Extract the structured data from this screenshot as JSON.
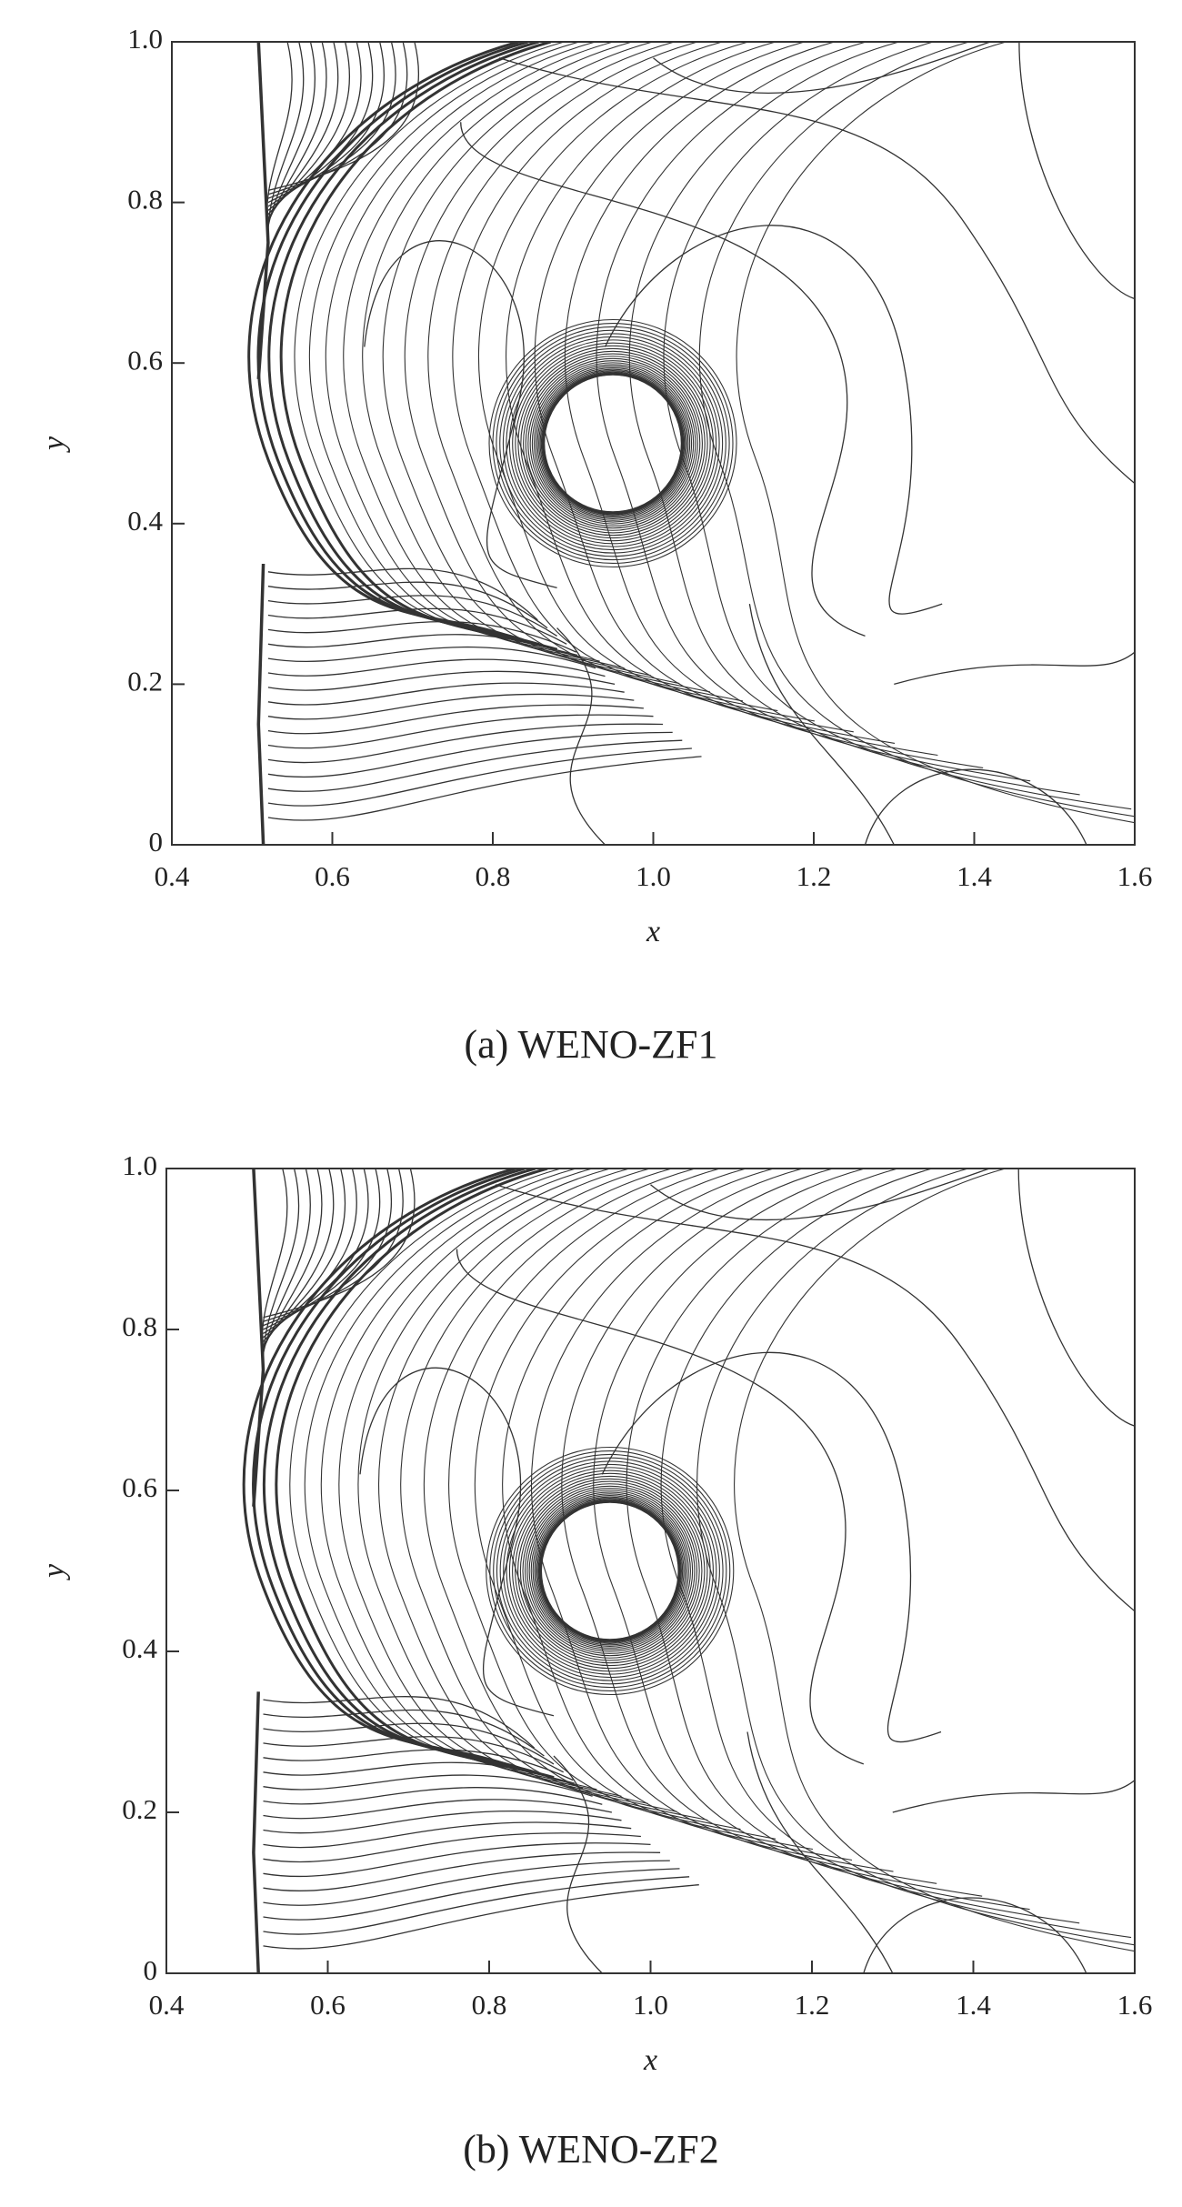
{
  "chart_data": [
    {
      "type": "contour",
      "caption": "(a) WENO-ZF1",
      "xlabel": "x",
      "ylabel": "y",
      "xlim": [
        0.4,
        1.6
      ],
      "xticks": [
        0.4,
        0.6,
        0.8,
        {
          "value": 1,
          "label": "1.0"
        },
        1.2,
        1.4,
        1.6
      ],
      "ylim": [
        0,
        1
      ],
      "yticks": [
        0,
        0.2,
        0.4,
        0.6,
        0.8,
        {
          "value": 1,
          "label": "1.0"
        }
      ]
    },
    {
      "type": "contour",
      "caption": "(b) WENO-ZF2",
      "xlabel": "x",
      "ylabel": "y",
      "xlim": [
        0.4,
        1.6
      ],
      "xticks": [
        0.4,
        0.6,
        0.8,
        {
          "value": 1,
          "label": "1.0"
        },
        1.2,
        1.4,
        1.6
      ],
      "ylim": [
        0,
        1
      ],
      "yticks": [
        0,
        0.2,
        0.4,
        0.6,
        0.8,
        {
          "value": 1,
          "label": "1.0"
        }
      ]
    }
  ]
}
